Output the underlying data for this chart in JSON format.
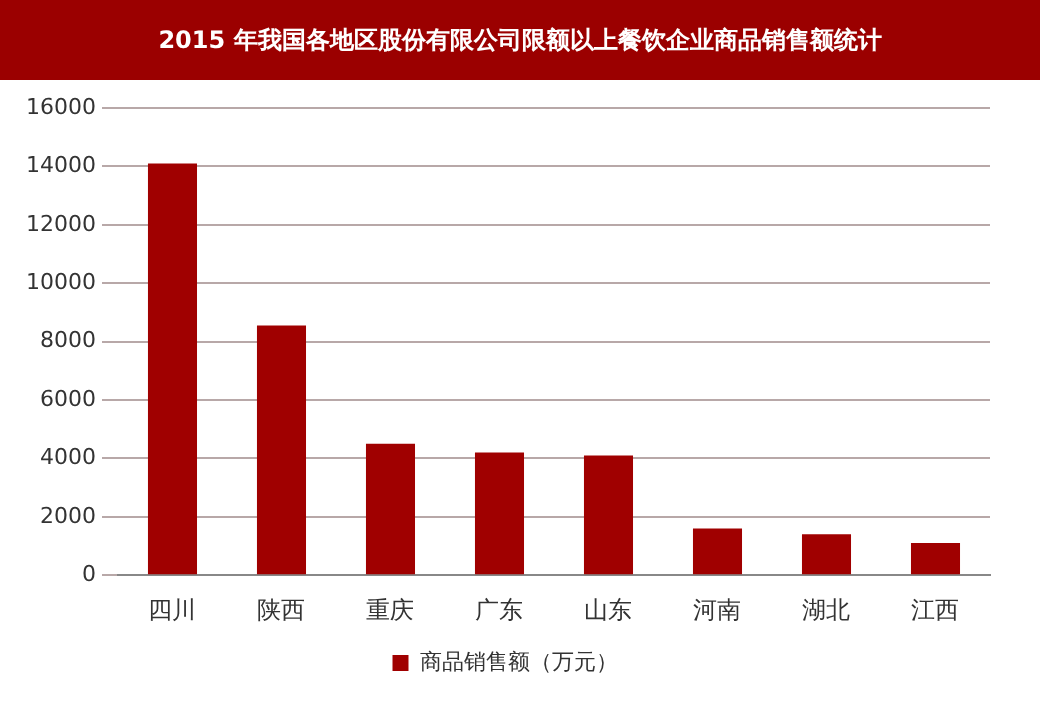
{
  "chart_data": {
    "type": "bar",
    "title": "2015 年我国各地区股份有限公司限额以上餐饮企业商品销售额统计",
    "categories": [
      "四川",
      "陕西",
      "重庆",
      "广东",
      "山东",
      "河南",
      "湖北",
      "江西"
    ],
    "series": [
      {
        "name": "商品销售额（万元）",
        "color": "#a00000",
        "values": [
          14100,
          8550,
          4500,
          4200,
          4100,
          1600,
          1400,
          1100
        ]
      }
    ],
    "ylim": [
      0,
      16000
    ],
    "yticks": [
      0,
      2000,
      4000,
      6000,
      8000,
      10000,
      12000,
      14000,
      16000
    ],
    "grid": "y",
    "legend": "bottom"
  }
}
